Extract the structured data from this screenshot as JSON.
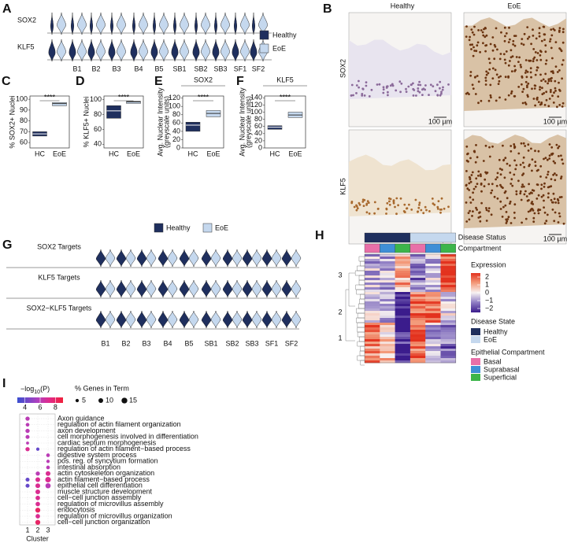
{
  "panels": {
    "A": {
      "label": "A",
      "genes": [
        "SOX2",
        "KLF5"
      ],
      "categories": [
        "B1",
        "B2",
        "B3",
        "B4",
        "B5",
        "SB1",
        "SB2",
        "SB3",
        "SF1",
        "SF2"
      ],
      "legend": [
        {
          "name": "Healthy",
          "color": "#1f2f5e"
        },
        {
          "name": "EoE",
          "color": "#c5d8ee"
        }
      ]
    },
    "B": {
      "label": "B",
      "columns": [
        "Healthy",
        "EoE"
      ],
      "rows": [
        "SOX2",
        "KLF5"
      ],
      "scale_bar": "100 µm"
    },
    "C": {
      "label": "C",
      "ylabel": "% SOX2+ Nuclei",
      "categories": [
        "HC",
        "EoE"
      ],
      "significance": "****",
      "ylim": [
        55,
        103
      ],
      "yticks": [
        60,
        70,
        80,
        90,
        100
      ],
      "boxes": [
        {
          "q1": 66,
          "median": 68,
          "q3": 70
        },
        {
          "q1": 94,
          "median": 96,
          "q3": 97
        }
      ]
    },
    "D": {
      "label": "D",
      "ylabel": "% KLF5+ Nuclei",
      "categories": [
        "HC",
        "EoE"
      ],
      "significance": "****",
      "ylim": [
        35,
        105
      ],
      "yticks": [
        40,
        60,
        80,
        100
      ],
      "boxes": [
        {
          "q1": 75,
          "median": 85,
          "q3": 92
        },
        {
          "q1": 95,
          "median": 97,
          "q3": 98
        }
      ]
    },
    "E": {
      "label": "E",
      "title": "SOX2",
      "ylabel": "Avg. Nuclear Intensity",
      "ylabel_sub": "(greyscale units)",
      "categories": [
        "HC",
        "EoE"
      ],
      "significance": "****",
      "ylim": [
        0,
        125
      ],
      "yticks": [
        0,
        20,
        40,
        60,
        80,
        100,
        120
      ],
      "boxes": [
        {
          "q1": 40,
          "median": 55,
          "q3": 62
        },
        {
          "q1": 75,
          "median": 83,
          "q3": 90
        }
      ]
    },
    "F": {
      "label": "F",
      "title": "KLF5",
      "ylabel": "Avg. Nuclear Intensity",
      "ylabel_sub": "(greyscale units)",
      "categories": [
        "HC",
        "EoE"
      ],
      "significance": "****",
      "ylim": [
        0,
        145
      ],
      "yticks": [
        0,
        20,
        40,
        60,
        80,
        100,
        120,
        140
      ],
      "boxes": [
        {
          "q1": 52,
          "median": 58,
          "q3": 62
        },
        {
          "q1": 85,
          "median": 92,
          "q3": 100
        }
      ]
    },
    "G": {
      "label": "G",
      "legend": [
        "Healthy",
        "EoE"
      ],
      "rows": [
        "SOX2 Targets",
        "KLF5 Targets",
        "SOX2−KLF5 Targets"
      ],
      "categories": [
        "B1",
        "B2",
        "B3",
        "B4",
        "B5",
        "SB1",
        "SB2",
        "SB3",
        "SF1",
        "SF2"
      ]
    },
    "H": {
      "label": "H",
      "clusters": [
        3,
        2,
        1
      ],
      "annotation_rows": [
        "Disease Status",
        "Compartment"
      ],
      "expression_title": "Expression",
      "expression_ticks": [
        2,
        1,
        0,
        {
          "value": -1,
          "label": "−1"
        },
        {
          "value": -2,
          "label": "−2"
        }
      ],
      "expression_lim": [
        -2.5,
        2.5
      ],
      "disease_title": "Disease State",
      "disease": [
        {
          "name": "Healthy",
          "color": "#1f2f5e"
        },
        {
          "name": "EoE",
          "color": "#c5d8ee"
        }
      ],
      "compartment_title": "Epithelial Compartment",
      "compartments": [
        {
          "name": "Basal",
          "color": "#e86fa8"
        },
        {
          "name": "Suprabasal",
          "color": "#3f8fd6"
        },
        {
          "name": "Superficial",
          "color": "#3cb54a"
        }
      ]
    },
    "I": {
      "label": "I",
      "pvalue_title": {
        "pre": "−log",
        "sub": "10",
        "post": "(P)"
      },
      "color_ticks": [
        4,
        6,
        8
      ],
      "color_lim": [
        3,
        9
      ],
      "size_title": "% Genes in Term",
      "size_ticks": [
        5,
        10,
        15
      ],
      "terms": [
        "Axon guidance",
        "regulation of actin filament organization",
        "axon development",
        "cell morphogenesis involved in differentiation",
        "cardiac septum morphogenesis",
        "regulation of actin filament−based process",
        "digestive system process",
        "pos. reg. of syncytium formation",
        "intestinal absorption",
        "actin cytoskeleton organization",
        "actin filament−based process",
        "epithelial cell differentiation",
        "muscle structure development",
        "cell−cell junction assembly",
        "regulation of microvillus assembly",
        "endocytosis",
        "regulation of microvillus organization",
        "cell−cell junction organization"
      ],
      "clusters": [
        1,
        2,
        3
      ],
      "xlabel": "Cluster",
      "dots": [
        {
          "term": 0,
          "cluster": 1,
          "neglog10p": 6,
          "pct": 8
        },
        {
          "term": 1,
          "cluster": 1,
          "neglog10p": 6,
          "pct": 6
        },
        {
          "term": 2,
          "cluster": 1,
          "neglog10p": 6,
          "pct": 8
        },
        {
          "term": 3,
          "cluster": 1,
          "neglog10p": 6,
          "pct": 7
        },
        {
          "term": 4,
          "cluster": 1,
          "neglog10p": 6,
          "pct": 4
        },
        {
          "term": 5,
          "cluster": 1,
          "neglog10p": 7,
          "pct": 8
        },
        {
          "term": 5,
          "cluster": 2,
          "neglog10p": 4,
          "pct": 5
        },
        {
          "term": 6,
          "cluster": 3,
          "neglog10p": 6,
          "pct": 6
        },
        {
          "term": 7,
          "cluster": 3,
          "neglog10p": 6,
          "pct": 5
        },
        {
          "term": 8,
          "cluster": 3,
          "neglog10p": 6,
          "pct": 6
        },
        {
          "term": 9,
          "cluster": 2,
          "neglog10p": 6,
          "pct": 8
        },
        {
          "term": 9,
          "cluster": 3,
          "neglog10p": 7,
          "pct": 10
        },
        {
          "term": 10,
          "cluster": 1,
          "neglog10p": 4,
          "pct": 7
        },
        {
          "term": 10,
          "cluster": 2,
          "neglog10p": 7,
          "pct": 10
        },
        {
          "term": 10,
          "cluster": 3,
          "neglog10p": 7,
          "pct": 14
        },
        {
          "term": 11,
          "cluster": 1,
          "neglog10p": 4,
          "pct": 7
        },
        {
          "term": 11,
          "cluster": 2,
          "neglog10p": 7,
          "pct": 10
        },
        {
          "term": 11,
          "cluster": 3,
          "neglog10p": 6,
          "pct": 12
        },
        {
          "term": 12,
          "cluster": 2,
          "neglog10p": 7,
          "pct": 10
        },
        {
          "term": 13,
          "cluster": 2,
          "neglog10p": 7,
          "pct": 9
        },
        {
          "term": 14,
          "cluster": 2,
          "neglog10p": 7,
          "pct": 9
        },
        {
          "term": 15,
          "cluster": 2,
          "neglog10p": 8,
          "pct": 11
        },
        {
          "term": 16,
          "cluster": 2,
          "neglog10p": 7,
          "pct": 9
        },
        {
          "term": 17,
          "cluster": 2,
          "neglog10p": 8,
          "pct": 11
        }
      ]
    }
  }
}
